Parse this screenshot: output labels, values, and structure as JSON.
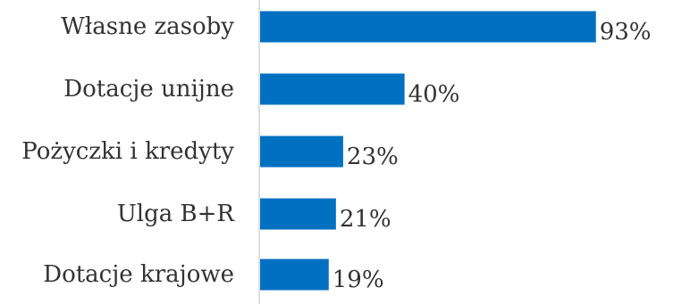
{
  "chart_data": {
    "type": "bar",
    "orientation": "horizontal",
    "categories": [
      "Własne zasoby",
      "Dotacje unijne",
      "Pożyczki i kredyty",
      "Ulga B+R",
      "Dotacje krajowe"
    ],
    "values": [
      93,
      40,
      23,
      21,
      19
    ],
    "value_labels": [
      "93%",
      "40%",
      "23%",
      "21%",
      "19%"
    ],
    "unit": "%",
    "title": "",
    "xlabel": "",
    "ylabel": "",
    "xlim": [
      0,
      100
    ],
    "grid": false,
    "legend": "none",
    "colors": {
      "bar": "#0070C0",
      "axis": "#bfbfbf",
      "text": "#333333"
    }
  }
}
